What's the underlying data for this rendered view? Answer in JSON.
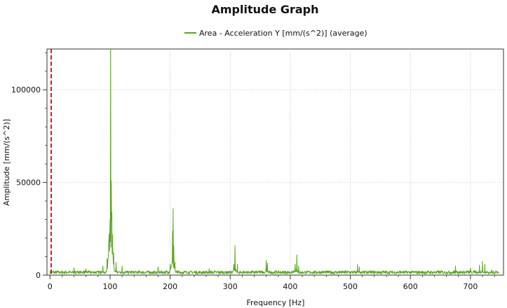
{
  "colors": {
    "series": "#5aa51f",
    "marker": "#ee1111",
    "grid": "#b8b8b8",
    "axis": "#333333",
    "text": "#111111"
  },
  "chart_data": {
    "type": "line",
    "title": "Amplitude Graph",
    "xlabel": "Frequency [Hz]",
    "ylabel": "Amplitude [mm/(s^2)]",
    "xlim": [
      -5,
      755
    ],
    "ylim": [
      0,
      122000
    ],
    "xticks": [
      0,
      100,
      200,
      300,
      400,
      500,
      600,
      700
    ],
    "yticks": [
      0,
      50000,
      100000
    ],
    "ytick_labels": [
      "0",
      "50000",
      "100000"
    ],
    "grid": true,
    "legend_position": "top-center",
    "marker_line": {
      "x": 2,
      "style": "dashed"
    },
    "series": [
      {
        "name": "Area - Acceleration Y [mm/(s^2)] (average)",
        "baseline": 1500,
        "peaks": [
          {
            "x": 40,
            "y": 4000
          },
          {
            "x": 60,
            "y": 3500
          },
          {
            "x": 88,
            "y": 5000
          },
          {
            "x": 95,
            "y": 9000
          },
          {
            "x": 98,
            "y": 18000
          },
          {
            "x": 100,
            "y": 30000
          },
          {
            "x": 101,
            "y": 122000
          },
          {
            "x": 102,
            "y": 51000
          },
          {
            "x": 103,
            "y": 34000
          },
          {
            "x": 104,
            "y": 22000
          },
          {
            "x": 106,
            "y": 12000
          },
          {
            "x": 110,
            "y": 7000
          },
          {
            "x": 120,
            "y": 5000
          },
          {
            "x": 180,
            "y": 4500
          },
          {
            "x": 200,
            "y": 6000
          },
          {
            "x": 204,
            "y": 24000
          },
          {
            "x": 205,
            "y": 36000
          },
          {
            "x": 206,
            "y": 16000
          },
          {
            "x": 208,
            "y": 7000
          },
          {
            "x": 265,
            "y": 3500
          },
          {
            "x": 306,
            "y": 6000
          },
          {
            "x": 308,
            "y": 16000
          },
          {
            "x": 312,
            "y": 6000
          },
          {
            "x": 360,
            "y": 8000
          },
          {
            "x": 362,
            "y": 6500
          },
          {
            "x": 408,
            "y": 6000
          },
          {
            "x": 411,
            "y": 11000
          },
          {
            "x": 414,
            "y": 5000
          },
          {
            "x": 512,
            "y": 6000
          },
          {
            "x": 515,
            "y": 4500
          },
          {
            "x": 675,
            "y": 5000
          },
          {
            "x": 700,
            "y": 4000
          },
          {
            "x": 715,
            "y": 5500
          },
          {
            "x": 720,
            "y": 7500
          },
          {
            "x": 724,
            "y": 6000
          },
          {
            "x": 735,
            "y": 3000
          }
        ]
      }
    ]
  }
}
